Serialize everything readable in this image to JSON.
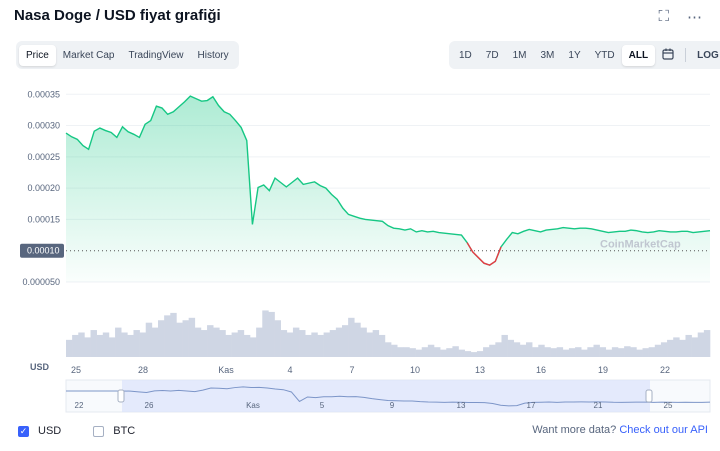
{
  "title": "Nasa Doge / USD fiyat grafiği",
  "top_icons": {
    "fullscreen": "fullscreen-icon",
    "more": "more-dots-icon"
  },
  "view_tabs": [
    {
      "label": "Price",
      "active": true
    },
    {
      "label": "Market Cap",
      "active": false
    },
    {
      "label": "TradingView",
      "active": false
    },
    {
      "label": "History",
      "active": false
    }
  ],
  "range_tabs": [
    {
      "label": "1D",
      "active": false
    },
    {
      "label": "7D",
      "active": false
    },
    {
      "label": "1M",
      "active": false
    },
    {
      "label": "3M",
      "active": false
    },
    {
      "label": "1Y",
      "active": false
    },
    {
      "label": "YTD",
      "active": false
    },
    {
      "label": "ALL",
      "active": true
    }
  ],
  "calendar_icon": "calendar-icon",
  "log_label": "LOG",
  "watermark": "CoinMarketCap",
  "currency_axis_label": "USD",
  "currency_options": [
    {
      "label": "USD",
      "checked": true
    },
    {
      "label": "BTC",
      "checked": false
    }
  ],
  "footer": {
    "text": "Want more data?",
    "link": "Check out our API"
  },
  "colors": {
    "up": "#16c784",
    "down": "#ea3943",
    "accent": "#3861fb",
    "volume": "#cfd6e4"
  },
  "chart_data": {
    "type": "line",
    "y_ticks": [
      "0.00035",
      "0.00030",
      "0.00025",
      "0.00020",
      "0.00015",
      "0.000050"
    ],
    "current_price_label": "0.00010",
    "x_ticks": [
      "25",
      "28",
      "Kas",
      "4",
      "7",
      "10",
      "13",
      "16",
      "19",
      "22"
    ],
    "navigator_ticks": [
      "22",
      "26",
      "Kas",
      "5",
      "9",
      "13",
      "17",
      "21",
      "25"
    ],
    "ylim": [
      5e-05,
      0.00036
    ],
    "baseline": 0.0001,
    "x_range": [
      0,
      57
    ],
    "series": [
      {
        "x": [
          0,
          0.5,
          1,
          1.5,
          2,
          2.5,
          3,
          3.5,
          4,
          4.5,
          5,
          5.5,
          6,
          6.5,
          7,
          7.5,
          8,
          8.5,
          9,
          9.5,
          10,
          10.5,
          11,
          11.5,
          12,
          12.5,
          13,
          13.5,
          14,
          14.5,
          15,
          15.5,
          16,
          16.5,
          17,
          17.5,
          18,
          18.5,
          19,
          19.5,
          20,
          20.5,
          21,
          21.5,
          22,
          22.5,
          23,
          23.5,
          24,
          24.5,
          25,
          25.5,
          26,
          26.5,
          27,
          27.5,
          28,
          28.5,
          29,
          29.5,
          30,
          30.5,
          31,
          31.5,
          32,
          32.5,
          33,
          33.5,
          34,
          34.5,
          35,
          35.5,
          36,
          36.5,
          37,
          37.5,
          38,
          38.5,
          39,
          39.5,
          40,
          40.5,
          41,
          41.5,
          42,
          42.5,
          43,
          43.5,
          44,
          44.5,
          45,
          45.5,
          46,
          46.5,
          47,
          47.5,
          48,
          48.5,
          49,
          49.5,
          50,
          50.5,
          51,
          51.5,
          52,
          52.5,
          53,
          53.5,
          54,
          54.5,
          55,
          55.5,
          56,
          56.5,
          57
        ],
        "values": [
          0.000288,
          0.000282,
          0.000278,
          0.000268,
          0.000262,
          0.000291,
          0.000296,
          0.000292,
          0.000289,
          0.000281,
          0.000298,
          0.00029,
          0.000286,
          0.000281,
          0.000302,
          0.000308,
          0.000331,
          0.000328,
          0.000318,
          0.000322,
          0.00033,
          0.000338,
          0.000347,
          0.000343,
          0.000339,
          0.00034,
          0.000346,
          0.000332,
          0.000322,
          0.000318,
          0.000308,
          0.000297,
          0.000276,
          0.000142,
          0.000201,
          0.000205,
          0.000196,
          0.000216,
          0.000209,
          0.000202,
          0.000209,
          0.000216,
          0.000206,
          0.000208,
          0.00021,
          0.000204,
          0.0002,
          0.00019,
          0.000182,
          0.000168,
          0.000158,
          0.000155,
          0.000152,
          0.00015,
          0.000149,
          0.000148,
          0.000147,
          0.00014,
          0.000136,
          0.000135,
          0.000133,
          0.000135,
          0.00013,
          0.000132,
          0.00013,
          0.000131,
          0.000129,
          0.000128,
          0.000127,
          0.000126,
          0.000125,
          0.000113,
          9.8e-05,
          8.9e-05,
          8e-05,
          7.7e-05,
          8.3e-05,
          0.000106,
          0.000118,
          0.000129,
          0.000127,
          0.000131,
          0.000134,
          0.000132,
          0.00013,
          0.000133,
          0.000134,
          0.000135,
          0.000137,
          0.000136,
          0.000135,
          0.000136,
          0.000136,
          0.000135,
          0.000133,
          0.000131,
          0.000129,
          0.00013,
          0.000131,
          0.000131,
          0.000133,
          0.000132,
          0.00013,
          0.000129,
          0.00013,
          0.000132,
          0.000131,
          0.00013,
          0.00013,
          0.000131,
          0.000131,
          0.000129,
          0.00013,
          0.000131,
          0.000132
        ]
      }
    ],
    "volume_relative": [
      0.35,
      0.45,
      0.5,
      0.4,
      0.55,
      0.45,
      0.5,
      0.4,
      0.6,
      0.5,
      0.45,
      0.55,
      0.5,
      0.7,
      0.6,
      0.75,
      0.85,
      0.9,
      0.7,
      0.75,
      0.8,
      0.6,
      0.55,
      0.65,
      0.6,
      0.55,
      0.45,
      0.5,
      0.55,
      0.45,
      0.4,
      0.6,
      0.95,
      0.92,
      0.75,
      0.55,
      0.5,
      0.6,
      0.55,
      0.45,
      0.5,
      0.45,
      0.5,
      0.55,
      0.6,
      0.65,
      0.8,
      0.7,
      0.6,
      0.5,
      0.55,
      0.45,
      0.3,
      0.25,
      0.2,
      0.2,
      0.18,
      0.15,
      0.2,
      0.25,
      0.2,
      0.15,
      0.18,
      0.22,
      0.15,
      0.12,
      0.1,
      0.12,
      0.2,
      0.25,
      0.3,
      0.45,
      0.35,
      0.3,
      0.25,
      0.3,
      0.2,
      0.25,
      0.2,
      0.18,
      0.2,
      0.15,
      0.18,
      0.2,
      0.15,
      0.2,
      0.25,
      0.2,
      0.15,
      0.2,
      0.18,
      0.22,
      0.2,
      0.15,
      0.18,
      0.2,
      0.25,
      0.3,
      0.35,
      0.4,
      0.35,
      0.45,
      0.4,
      0.5,
      0.55
    ]
  }
}
